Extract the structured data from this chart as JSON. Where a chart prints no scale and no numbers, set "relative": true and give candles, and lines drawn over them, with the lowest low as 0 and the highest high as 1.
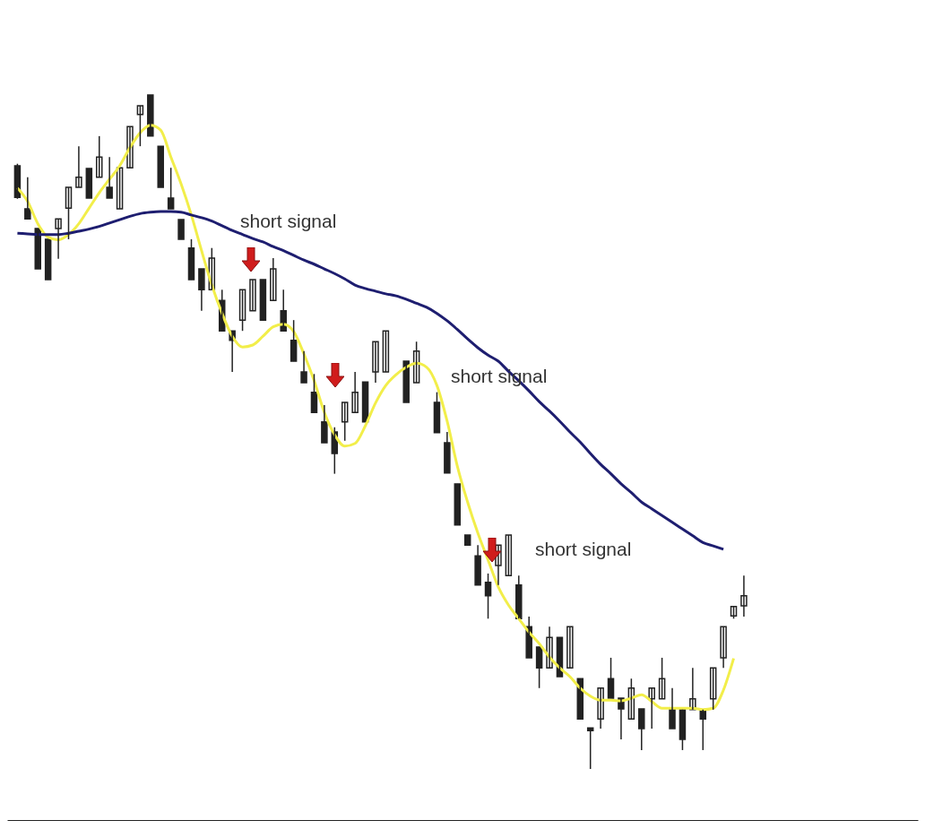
{
  "chart_data": {
    "type": "candlestick",
    "relative": true,
    "categories": [
      null,
      null,
      null,
      null,
      null,
      null,
      null,
      null,
      null,
      null,
      null,
      null,
      null,
      null,
      null,
      null,
      null,
      null,
      null,
      null,
      null,
      null,
      null,
      null,
      null,
      null,
      null,
      null,
      null,
      null,
      null,
      null,
      null,
      null,
      null,
      null,
      null,
      null,
      null,
      null,
      null,
      null,
      null,
      null,
      null,
      null,
      null,
      null,
      null,
      null,
      null,
      null,
      null,
      null,
      null,
      null,
      null,
      null,
      null,
      null,
      null,
      null,
      null,
      null,
      null,
      null,
      null,
      null,
      null,
      null,
      null,
      null,
      null,
      null,
      null,
      null,
      null,
      null,
      null,
      null,
      null,
      null,
      null,
      null,
      null,
      null,
      null,
      null
    ],
    "ohlc": [
      [
        0.895,
        0.898,
        0.846,
        0.848
      ],
      [
        0.831,
        0.878,
        0.816,
        0.816
      ],
      [
        0.802,
        0.802,
        0.742,
        0.742
      ],
      [
        0.786,
        0.786,
        0.726,
        0.726
      ],
      [
        0.802,
        0.816,
        0.757,
        0.816
      ],
      [
        0.832,
        0.863,
        0.786,
        0.863
      ],
      [
        0.863,
        0.924,
        0.863,
        0.878
      ],
      [
        0.891,
        0.891,
        0.847,
        0.847
      ],
      [
        0.878,
        0.939,
        0.878,
        0.908
      ],
      [
        0.863,
        0.908,
        0.847,
        0.847
      ],
      [
        0.831,
        0.892,
        0.831,
        0.892
      ],
      [
        0.892,
        0.953,
        0.892,
        0.953
      ],
      [
        0.971,
        0.984,
        0.924,
        0.984
      ],
      [
        1.0,
        1.0,
        0.939,
        0.939
      ],
      [
        0.924,
        0.924,
        0.863,
        0.863
      ],
      [
        0.847,
        0.892,
        0.831,
        0.831
      ],
      [
        0.815,
        0.815,
        0.786,
        0.786
      ],
      [
        0.773,
        0.786,
        0.726,
        0.726
      ],
      [
        0.742,
        0.742,
        0.68,
        0.711
      ],
      [
        0.711,
        0.773,
        0.711,
        0.758
      ],
      [
        0.695,
        0.711,
        0.65,
        0.65
      ],
      [
        0.65,
        0.65,
        0.589,
        0.636
      ],
      [
        0.666,
        0.711,
        0.65,
        0.711
      ],
      [
        0.68,
        0.726,
        0.68,
        0.726
      ],
      [
        0.726,
        0.726,
        0.666,
        0.666
      ],
      [
        0.695,
        0.758,
        0.695,
        0.742
      ],
      [
        0.68,
        0.711,
        0.65,
        0.65
      ],
      [
        0.636,
        0.666,
        0.605,
        0.605
      ],
      [
        0.589,
        0.62,
        0.573,
        0.573
      ],
      [
        0.559,
        0.586,
        0.529,
        0.529
      ],
      [
        0.515,
        0.54,
        0.484,
        0.484
      ],
      [
        0.5,
        0.507,
        0.438,
        0.468
      ],
      [
        0.515,
        0.544,
        0.487,
        0.544
      ],
      [
        0.529,
        0.589,
        0.529,
        0.559
      ],
      [
        0.574,
        0.574,
        0.515,
        0.515
      ],
      [
        0.589,
        0.634,
        0.573,
        0.634
      ],
      [
        0.589,
        0.65,
        0.589,
        0.65
      ],
      null,
      [
        0.605,
        0.605,
        0.544,
        0.544
      ],
      [
        0.573,
        0.634,
        0.573,
        0.62
      ],
      null,
      [
        0.544,
        0.559,
        0.499,
        0.499
      ],
      [
        0.484,
        0.5,
        0.439,
        0.439
      ],
      [
        0.423,
        0.423,
        0.362,
        0.362
      ],
      [
        0.347,
        0.347,
        0.332,
        0.332
      ],
      [
        0.316,
        0.332,
        0.273,
        0.273
      ],
      [
        0.277,
        0.29,
        0.223,
        0.257
      ],
      [
        0.302,
        0.332,
        0.273,
        0.332
      ],
      [
        0.287,
        0.347,
        0.287,
        0.347
      ],
      [
        0.273,
        0.287,
        0.223,
        0.223
      ],
      [
        0.211,
        0.226,
        0.165,
        0.165
      ],
      [
        0.181,
        0.181,
        0.12,
        0.15
      ],
      [
        0.15,
        0.211,
        0.15,
        0.195
      ],
      [
        0.195,
        0.195,
        0.137,
        0.137
      ],
      [
        0.15,
        0.211,
        0.15,
        0.211
      ],
      [
        0.134,
        0.134,
        0.074,
        0.074
      ],
      [
        0.061,
        0.061,
        0.0,
        0.057
      ],
      [
        0.074,
        0.12,
        0.06,
        0.12
      ],
      [
        0.134,
        0.165,
        0.105,
        0.105
      ],
      [
        0.105,
        0.105,
        0.044,
        0.089
      ],
      [
        0.074,
        0.134,
        0.074,
        0.12
      ],
      [
        0.089,
        0.089,
        0.028,
        0.06
      ],
      [
        0.104,
        0.12,
        0.06,
        0.12
      ],
      [
        0.104,
        0.165,
        0.104,
        0.134
      ],
      [
        0.088,
        0.12,
        0.06,
        0.06
      ],
      [
        0.088,
        0.088,
        0.028,
        0.044
      ],
      [
        0.088,
        0.15,
        0.088,
        0.104
      ],
      [
        0.088,
        0.088,
        0.028,
        0.074
      ],
      [
        0.104,
        0.15,
        0.088,
        0.15
      ],
      [
        0.165,
        0.211,
        0.15,
        0.211
      ],
      [
        0.227,
        0.241,
        0.223,
        0.241
      ],
      [
        0.242,
        0.287,
        0.226,
        0.257
      ],
      null,
      null,
      null,
      null,
      null,
      null,
      null,
      null,
      null,
      null,
      null,
      null,
      null,
      null,
      null,
      null
    ],
    "series": [
      {
        "type": "line",
        "color": "#f2ee4a",
        "values": [
          0.862,
          0.842,
          0.809,
          0.789,
          0.785,
          0.793,
          0.809,
          0.832,
          0.855,
          0.875,
          0.895,
          0.922,
          0.944,
          0.955,
          0.948,
          0.908,
          0.868,
          0.822,
          0.769,
          0.718,
          0.676,
          0.642,
          0.626,
          0.629,
          0.642,
          0.656,
          0.66,
          0.649,
          0.616,
          0.576,
          0.529,
          0.496,
          0.479,
          0.483,
          0.509,
          0.543,
          0.569,
          0.585,
          0.596,
          0.602,
          0.596,
          0.569,
          0.516,
          0.449,
          0.396,
          0.35,
          0.31,
          0.27,
          0.243,
          0.223,
          0.203,
          0.186,
          0.166,
          0.15,
          0.137,
          0.12,
          0.108,
          0.102,
          0.102,
          0.101,
          0.105,
          0.11,
          0.1,
          0.09,
          0.09,
          0.09,
          0.09,
          0.088,
          0.09,
          0.117,
          0.164,
          null,
          null,
          null,
          null,
          null,
          null,
          null,
          null,
          null,
          null,
          null,
          null,
          null,
          null,
          null,
          null,
          null
        ]
      },
      {
        "type": "line",
        "color": "#1e1e70",
        "values": [
          0.795,
          0.794,
          0.793,
          0.793,
          0.793,
          0.795,
          0.798,
          0.801,
          0.805,
          0.81,
          0.815,
          0.82,
          0.824,
          0.826,
          0.827,
          0.827,
          0.826,
          0.822,
          0.818,
          0.813,
          0.806,
          0.799,
          0.793,
          0.787,
          0.782,
          0.775,
          0.769,
          0.762,
          0.755,
          0.749,
          0.742,
          0.735,
          0.727,
          0.718,
          0.713,
          0.709,
          0.705,
          0.702,
          0.697,
          0.691,
          0.685,
          0.676,
          0.665,
          0.652,
          0.638,
          0.625,
          0.614,
          0.605,
          0.59,
          0.576,
          0.561,
          0.545,
          0.531,
          0.516,
          0.5,
          0.485,
          0.468,
          0.452,
          0.438,
          0.423,
          0.41,
          0.396,
          0.386,
          0.376,
          0.366,
          0.356,
          0.346,
          0.336,
          0.331,
          0.326,
          null,
          null,
          null,
          null,
          null,
          null,
          null,
          null,
          null,
          null,
          null,
          null,
          null,
          null,
          null,
          null,
          null,
          null
        ]
      }
    ],
    "annotations": [
      "short signal",
      "short signal",
      "short signal"
    ]
  }
}
